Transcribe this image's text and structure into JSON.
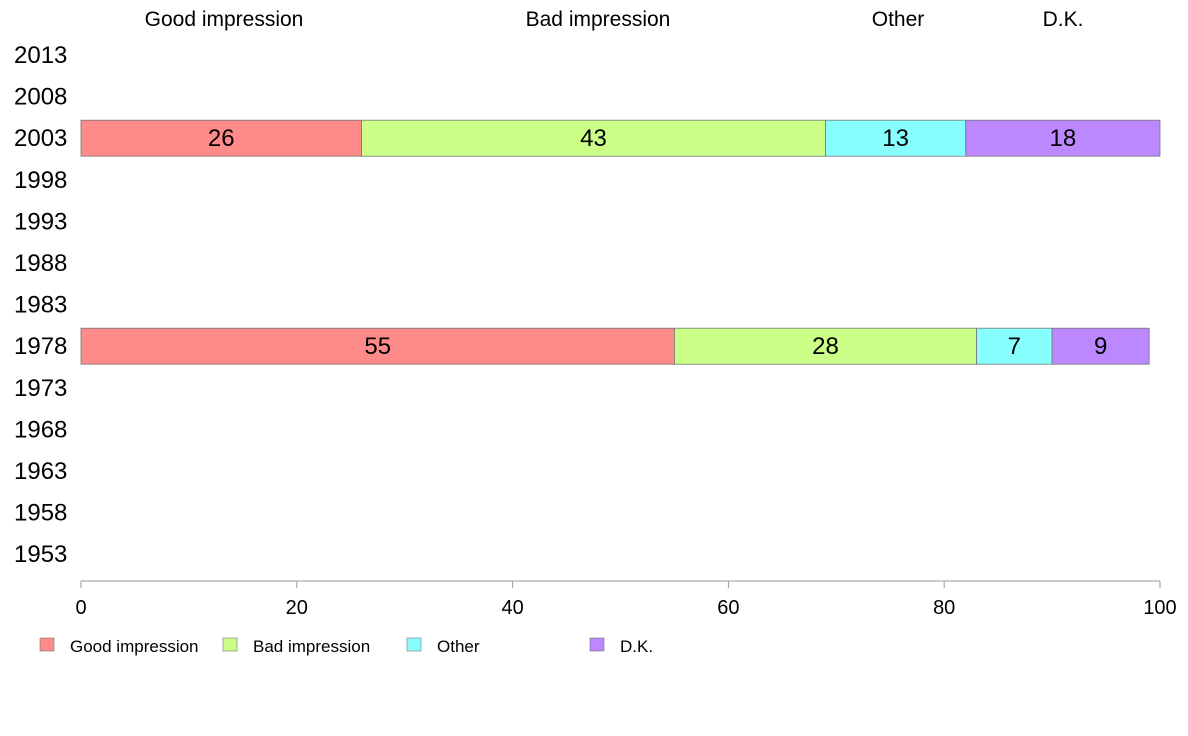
{
  "chart_data": {
    "type": "bar",
    "orientation": "horizontal",
    "stacked": true,
    "categories": [
      "2013",
      "2008",
      "2003",
      "1998",
      "1993",
      "1988",
      "1983",
      "1978",
      "1973",
      "1968",
      "1963",
      "1958",
      "1953"
    ],
    "series": [
      {
        "name": "Good impression",
        "color": "#ff8a8a",
        "values": [
          null,
          null,
          26,
          null,
          null,
          null,
          null,
          55,
          null,
          null,
          null,
          null,
          null
        ]
      },
      {
        "name": "Bad impression",
        "color": "#ccff88",
        "values": [
          null,
          null,
          43,
          null,
          null,
          null,
          null,
          28,
          null,
          null,
          null,
          null,
          null
        ]
      },
      {
        "name": "Other",
        "color": "#88ffff",
        "values": [
          null,
          null,
          13,
          null,
          null,
          null,
          null,
          7,
          null,
          null,
          null,
          null,
          null
        ]
      },
      {
        "name": "D.K.",
        "color": "#bb88ff",
        "values": [
          null,
          null,
          18,
          null,
          null,
          null,
          null,
          9,
          null,
          null,
          null,
          null,
          null
        ]
      }
    ],
    "column_headers": [
      "Good impression",
      "Bad impression",
      "Other",
      "D.K."
    ],
    "xlim": [
      0,
      100
    ],
    "xticks": [
      "0",
      "20",
      "40",
      "60",
      "80",
      "100"
    ],
    "xlabel": "",
    "ylabel": "",
    "title": "",
    "grid": false,
    "legend_position": "bottom-left"
  }
}
